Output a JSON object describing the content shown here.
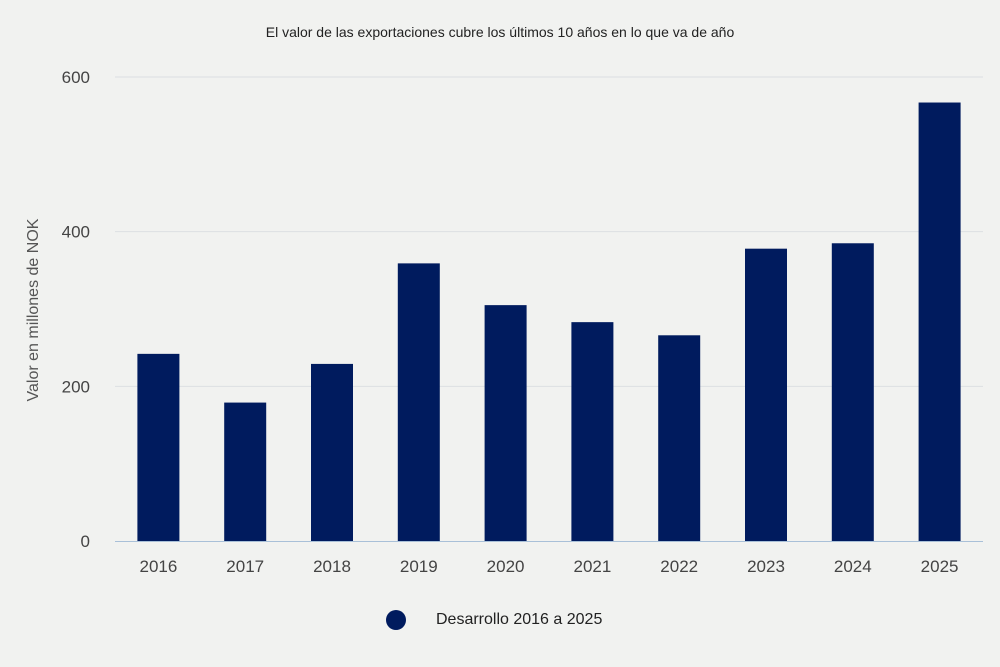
{
  "chart_data": {
    "type": "bar",
    "title": "El valor de las exportaciones cubre los últimos 10 años en lo que va de año",
    "xlabel": "",
    "ylabel": "Valor en millones de NOK",
    "categories": [
      "2016",
      "2017",
      "2018",
      "2019",
      "2020",
      "2021",
      "2022",
      "2023",
      "2024",
      "2025"
    ],
    "series": [
      {
        "name": "Desarrollo 2016 a 2025",
        "values": [
          242,
          179,
          229,
          359,
          305,
          283,
          266,
          378,
          385,
          567
        ]
      }
    ],
    "ylim": [
      0,
      600
    ],
    "yticks": [
      "0",
      "200",
      "400",
      "600"
    ],
    "grid": true,
    "legend_position": "bottom-center",
    "colors": {
      "bar": "#001b5e",
      "grid": "#dcdfe2",
      "axis": "#a9c0d8",
      "background": "#f1f2f0"
    }
  }
}
